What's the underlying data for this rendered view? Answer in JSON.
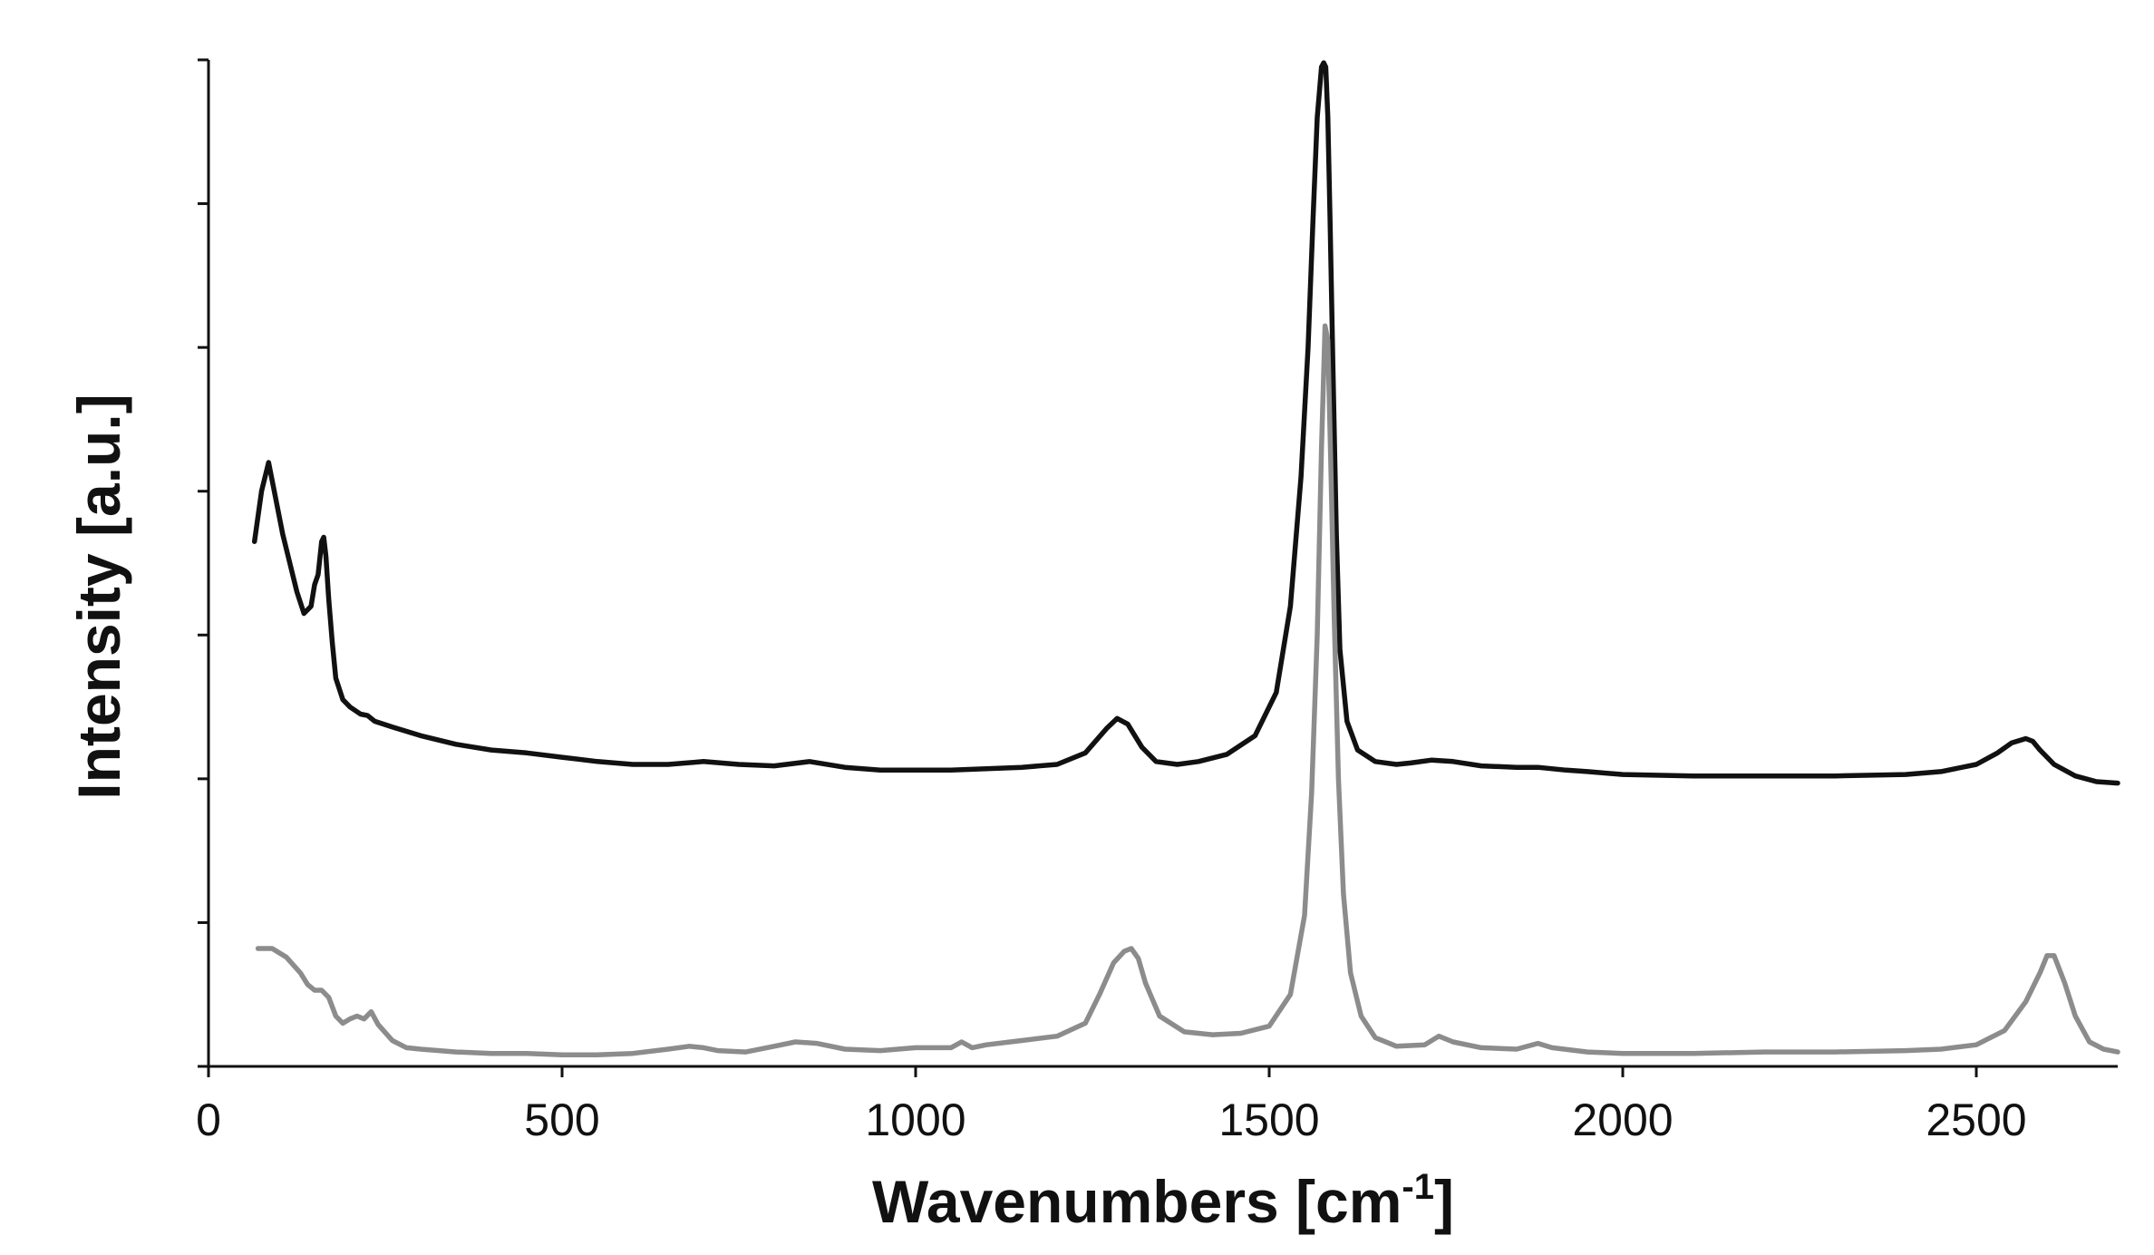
{
  "chart_data": {
    "type": "line",
    "xlabel_main": "Wavenumbers [cm",
    "xlabel_sup": "-1",
    "xlabel_end": "]",
    "ylabel": "Intensity [a.u.]",
    "xlim": [
      0,
      2700
    ],
    "ylim": [
      0,
      7
    ],
    "xticks": [
      "0",
      "500",
      "1000",
      "1500",
      "2000",
      "2500"
    ],
    "xtick_values": [
      0,
      500,
      1000,
      1500,
      2000,
      2500
    ],
    "ytick_values": [
      0,
      1,
      2,
      3,
      4,
      5,
      6,
      7
    ],
    "ytick_labels_shown": false,
    "grid": false,
    "series": [
      {
        "color": "#111111",
        "x": [
          65,
          75,
          85,
          95,
          105,
          115,
          125,
          135,
          145,
          150,
          155,
          160,
          163,
          166,
          170,
          175,
          180,
          190,
          200,
          215,
          225,
          235,
          260,
          300,
          350,
          400,
          450,
          500,
          550,
          600,
          650,
          700,
          750,
          800,
          850,
          900,
          950,
          1000,
          1050,
          1100,
          1150,
          1200,
          1240,
          1270,
          1285,
          1300,
          1310,
          1320,
          1340,
          1370,
          1400,
          1440,
          1480,
          1510,
          1530,
          1545,
          1555,
          1562,
          1568,
          1574,
          1577,
          1580,
          1583,
          1586,
          1590,
          1595,
          1600,
          1610,
          1625,
          1650,
          1680,
          1700,
          1730,
          1760,
          1800,
          1850,
          1880,
          1920,
          1950,
          2000,
          2100,
          2200,
          2300,
          2400,
          2450,
          2500,
          2530,
          2550,
          2570,
          2580,
          2590,
          2610,
          2640,
          2670,
          2700
        ],
        "y": [
          3.65,
          4.0,
          4.2,
          3.95,
          3.7,
          3.5,
          3.3,
          3.15,
          3.2,
          3.35,
          3.42,
          3.65,
          3.68,
          3.55,
          3.25,
          2.95,
          2.7,
          2.55,
          2.5,
          2.45,
          2.44,
          2.4,
          2.36,
          2.3,
          2.24,
          2.2,
          2.18,
          2.15,
          2.12,
          2.1,
          2.1,
          2.12,
          2.1,
          2.09,
          2.12,
          2.08,
          2.06,
          2.06,
          2.06,
          2.07,
          2.08,
          2.1,
          2.18,
          2.35,
          2.42,
          2.38,
          2.3,
          2.22,
          2.12,
          2.1,
          2.12,
          2.17,
          2.3,
          2.6,
          3.2,
          4.1,
          5.0,
          5.9,
          6.6,
          6.95,
          6.98,
          6.95,
          6.6,
          5.9,
          4.9,
          3.7,
          2.9,
          2.4,
          2.2,
          2.12,
          2.1,
          2.11,
          2.13,
          2.12,
          2.09,
          2.08,
          2.08,
          2.06,
          2.05,
          2.03,
          2.02,
          2.02,
          2.02,
          2.03,
          2.05,
          2.1,
          2.18,
          2.25,
          2.28,
          2.26,
          2.2,
          2.1,
          2.02,
          1.98,
          1.97
        ]
      },
      {
        "color": "#8c8c8c",
        "x": [
          70,
          90,
          110,
          130,
          140,
          150,
          160,
          170,
          180,
          190,
          200,
          210,
          220,
          230,
          240,
          260,
          280,
          300,
          350,
          400,
          450,
          500,
          550,
          600,
          650,
          680,
          700,
          720,
          760,
          800,
          830,
          860,
          900,
          950,
          1000,
          1050,
          1065,
          1080,
          1100,
          1150,
          1200,
          1240,
          1260,
          1280,
          1295,
          1305,
          1315,
          1325,
          1345,
          1380,
          1420,
          1460,
          1500,
          1530,
          1550,
          1560,
          1568,
          1574,
          1579,
          1583,
          1587,
          1592,
          1598,
          1605,
          1615,
          1630,
          1650,
          1680,
          1720,
          1740,
          1760,
          1800,
          1850,
          1880,
          1900,
          1950,
          2000,
          2100,
          2200,
          2300,
          2400,
          2450,
          2500,
          2540,
          2570,
          2590,
          2600,
          2610,
          2625,
          2640,
          2660,
          2680,
          2700
        ],
        "y": [
          0.82,
          0.82,
          0.76,
          0.65,
          0.57,
          0.53,
          0.53,
          0.48,
          0.35,
          0.3,
          0.33,
          0.35,
          0.33,
          0.38,
          0.29,
          0.18,
          0.13,
          0.12,
          0.1,
          0.09,
          0.09,
          0.08,
          0.08,
          0.09,
          0.12,
          0.14,
          0.13,
          0.11,
          0.1,
          0.14,
          0.17,
          0.16,
          0.12,
          0.11,
          0.13,
          0.13,
          0.17,
          0.13,
          0.15,
          0.18,
          0.21,
          0.3,
          0.5,
          0.72,
          0.8,
          0.82,
          0.75,
          0.58,
          0.35,
          0.24,
          0.22,
          0.23,
          0.28,
          0.5,
          1.05,
          1.9,
          3.0,
          4.3,
          5.15,
          5.05,
          4.2,
          3.1,
          2.0,
          1.2,
          0.65,
          0.35,
          0.2,
          0.14,
          0.15,
          0.21,
          0.17,
          0.13,
          0.12,
          0.16,
          0.13,
          0.1,
          0.09,
          0.09,
          0.1,
          0.1,
          0.11,
          0.12,
          0.15,
          0.25,
          0.45,
          0.65,
          0.77,
          0.77,
          0.58,
          0.35,
          0.17,
          0.12,
          0.1
        ]
      }
    ]
  }
}
